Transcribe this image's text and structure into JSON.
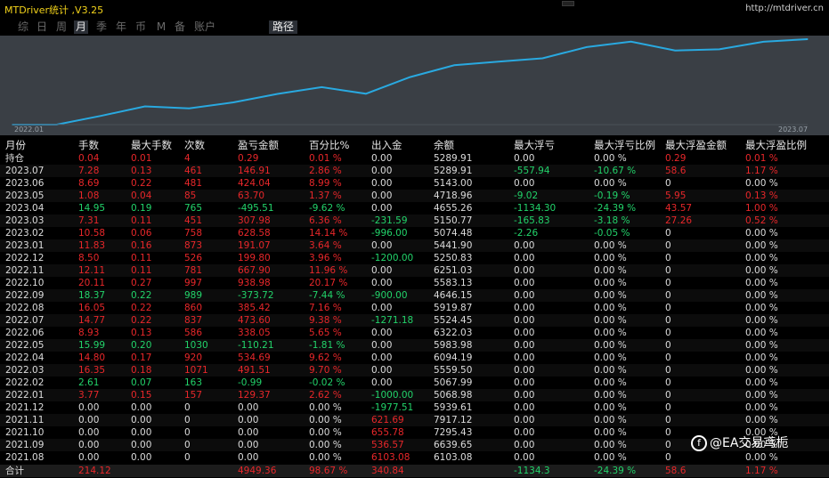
{
  "title": "MTDriver统计 ,V3.25",
  "url": "http://mtdriver.cn",
  "tabs": [
    "综",
    "日",
    "周",
    "月",
    "季",
    "年",
    "币",
    "M",
    "备",
    "账户"
  ],
  "path_tab": "路径",
  "chart_data": {
    "type": "line",
    "x": [
      "2022.01",
      "2022.02",
      "2022.03",
      "2022.04",
      "2022.05",
      "2022.06",
      "2022.07",
      "2022.08",
      "2022.09",
      "2022.10",
      "2022.11",
      "2022.12",
      "2023.01",
      "2023.02",
      "2023.03",
      "2023.04",
      "2023.05",
      "2023.06",
      "2023.07"
    ],
    "values": [
      126.37,
      125.38,
      616.89,
      1151.58,
      1041.37,
      1379.42,
      1853.02,
      2238.44,
      1864.72,
      2803.7,
      3471.6,
      3671.4,
      3862.47,
      4490.97,
      4798.95,
      4303.44,
      4367.14,
      4791.18,
      4938.09
    ],
    "x_start_label": "2022.01",
    "x_end_label": "2023.07",
    "color": "#29a9e0"
  },
  "headers": [
    "月份",
    "手数",
    "最大手数",
    "次数",
    "盈亏金额",
    "百分比%",
    "出入金",
    "余额",
    "最大浮亏",
    "最大浮亏比例",
    "最大浮盈金额",
    "最大浮盈比例"
  ],
  "rows": [
    [
      "持仓",
      "0.04",
      "0.01",
      "4",
      "0.29",
      "0.01 %",
      "0.00",
      "5289.91",
      "0.00",
      "0.00 %",
      "0.29",
      "0.01 %"
    ],
    [
      "2023.07",
      "7.28",
      "0.13",
      "461",
      "146.91",
      "2.86 %",
      "0.00",
      "5289.91",
      "-557.94",
      "-10.67 %",
      "58.6",
      "1.17 %"
    ],
    [
      "2023.06",
      "8.69",
      "0.22",
      "481",
      "424.04",
      "8.99 %",
      "0.00",
      "5143.00",
      "0.00",
      "0.00 %",
      "0",
      "0.00 %"
    ],
    [
      "2023.05",
      "1.08",
      "0.04",
      "85",
      "63.70",
      "1.37 %",
      "0.00",
      "4718.96",
      "-9.02",
      "-0.19 %",
      "5.95",
      "0.13 %"
    ],
    [
      "2023.04",
      "14.95",
      "0.19",
      "765",
      "-495.51",
      "-9.62 %",
      "0.00",
      "4655.26",
      "-1134.30",
      "-24.39 %",
      "43.57",
      "1.00 %"
    ],
    [
      "2023.03",
      "7.31",
      "0.11",
      "451",
      "307.98",
      "6.36 %",
      "-231.59",
      "5150.77",
      "-165.83",
      "-3.18 %",
      "27.26",
      "0.52 %"
    ],
    [
      "2023.02",
      "10.58",
      "0.06",
      "758",
      "628.58",
      "14.14 %",
      "-996.00",
      "5074.48",
      "-2.26",
      "-0.05 %",
      "0",
      "0.00 %"
    ],
    [
      "2023.01",
      "11.83",
      "0.16",
      "873",
      "191.07",
      "3.64 %",
      "0.00",
      "5441.90",
      "0.00",
      "0.00 %",
      "0",
      "0.00 %"
    ],
    [
      "2022.12",
      "8.50",
      "0.11",
      "526",
      "199.80",
      "3.96 %",
      "-1200.00",
      "5250.83",
      "0.00",
      "0.00 %",
      "0",
      "0.00 %"
    ],
    [
      "2022.11",
      "12.11",
      "0.11",
      "781",
      "667.90",
      "11.96 %",
      "0.00",
      "6251.03",
      "0.00",
      "0.00 %",
      "0",
      "0.00 %"
    ],
    [
      "2022.10",
      "20.11",
      "0.27",
      "997",
      "938.98",
      "20.17 %",
      "0.00",
      "5583.13",
      "0.00",
      "0.00 %",
      "0",
      "0.00 %"
    ],
    [
      "2022.09",
      "18.37",
      "0.22",
      "989",
      "-373.72",
      "-7.44 %",
      "-900.00",
      "4646.15",
      "0.00",
      "0.00 %",
      "0",
      "0.00 %"
    ],
    [
      "2022.08",
      "16.05",
      "0.22",
      "860",
      "385.42",
      "7.16 %",
      "0.00",
      "5919.87",
      "0.00",
      "0.00 %",
      "0",
      "0.00 %"
    ],
    [
      "2022.07",
      "14.77",
      "0.22",
      "837",
      "473.60",
      "9.38 %",
      "-1271.18",
      "5524.45",
      "0.00",
      "0.00 %",
      "0",
      "0.00 %"
    ],
    [
      "2022.06",
      "8.93",
      "0.13",
      "586",
      "338.05",
      "5.65 %",
      "0.00",
      "6322.03",
      "0.00",
      "0.00 %",
      "0",
      "0.00 %"
    ],
    [
      "2022.05",
      "15.99",
      "0.20",
      "1030",
      "-110.21",
      "-1.81 %",
      "0.00",
      "5983.98",
      "0.00",
      "0.00 %",
      "0",
      "0.00 %"
    ],
    [
      "2022.04",
      "14.80",
      "0.17",
      "920",
      "534.69",
      "9.62 %",
      "0.00",
      "6094.19",
      "0.00",
      "0.00 %",
      "0",
      "0.00 %"
    ],
    [
      "2022.03",
      "16.35",
      "0.18",
      "1071",
      "491.51",
      "9.70 %",
      "0.00",
      "5559.50",
      "0.00",
      "0.00 %",
      "0",
      "0.00 %"
    ],
    [
      "2022.02",
      "2.61",
      "0.07",
      "163",
      "-0.99",
      "-0.02 %",
      "0.00",
      "5067.99",
      "0.00",
      "0.00 %",
      "0",
      "0.00 %"
    ],
    [
      "2022.01",
      "3.77",
      "0.15",
      "157",
      "129.37",
      "2.62 %",
      "-1000.00",
      "5068.98",
      "0.00",
      "0.00 %",
      "0",
      "0.00 %"
    ],
    [
      "2021.12",
      "0.00",
      "0.00",
      "0",
      "0.00",
      "0.00 %",
      "-1977.51",
      "5939.61",
      "0.00",
      "0.00 %",
      "0",
      "0.00 %"
    ],
    [
      "2021.11",
      "0.00",
      "0.00",
      "0",
      "0.00",
      "0.00 %",
      "621.69",
      "7917.12",
      "0.00",
      "0.00 %",
      "0",
      "0.00 %"
    ],
    [
      "2021.10",
      "0.00",
      "0.00",
      "0",
      "0.00",
      "0.00 %",
      "655.78",
      "7295.43",
      "0.00",
      "0.00 %",
      "0",
      "0.00 %"
    ],
    [
      "2021.09",
      "0.00",
      "0.00",
      "0",
      "0.00",
      "0.00 %",
      "536.57",
      "6639.65",
      "0.00",
      "0.00 %",
      "0",
      "0.00 %"
    ],
    [
      "2021.08",
      "0.00",
      "0.00",
      "0",
      "0.00",
      "0.00 %",
      "6103.08",
      "6103.08",
      "0.00",
      "0.00 %",
      "0",
      "0.00 %"
    ],
    [
      "合计",
      "214.12",
      "",
      "",
      "4949.36",
      "98.67 %",
      "340.84",
      "",
      "-1134.3",
      "-24.39 %",
      "58.6",
      "1.17 %"
    ]
  ],
  "watermark": "@EA交易鸢栀",
  "colors": {
    "positive": "#e8272a",
    "negative": "#22d36a",
    "neutral": "#dcdcdc",
    "chart_line": "#29a9e0",
    "chart_bg": "#3a3f45",
    "title": "#f2d21a"
  }
}
